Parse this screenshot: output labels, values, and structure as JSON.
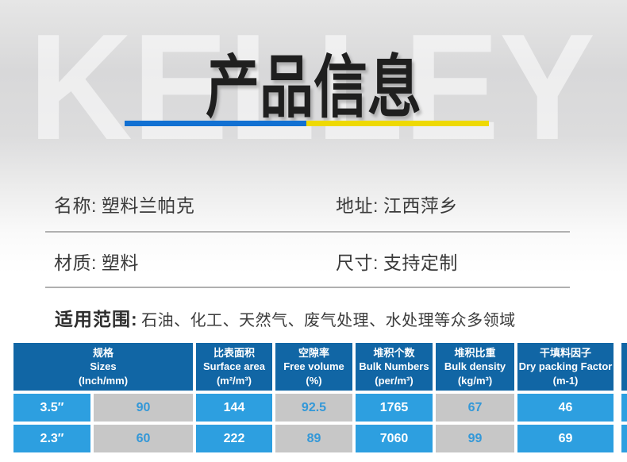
{
  "watermark": "KELLEY",
  "title": "产品信息",
  "palette": {
    "title_color": "#1f1f1f",
    "watermark_color": "rgba(255,255,255,0.55)",
    "bar_blue": "#1170d2",
    "bar_yellow": "#eed903",
    "field_text": "#3a3a3a",
    "divider": "#b0b0b0",
    "header_bg": "#1166a5",
    "cell_blue": "#2d9fe0",
    "cell_gray": "#c7c7c7",
    "num_blue": "#3398d8"
  },
  "fields": {
    "name": {
      "label": "名称:",
      "value": "塑料兰帕克"
    },
    "address": {
      "label": "地址:",
      "value": "江西萍乡"
    },
    "material": {
      "label": "材质:",
      "value": "塑料"
    },
    "size": {
      "label": "尺寸:",
      "value": "支持定制"
    }
  },
  "scope": {
    "label": "适用范围:",
    "value": "石油、化工、天然气、废气处理、水处理等众多领域"
  },
  "table": {
    "headers": [
      {
        "zh": "规格",
        "en": "Sizes",
        "unit": "(Inch/mm)"
      },
      {
        "zh": "比表面积",
        "en": "Surface area",
        "unit": "(m²/m³)"
      },
      {
        "zh": "空隙率",
        "en": "Free volume",
        "unit": "(%)"
      },
      {
        "zh": "堆积个数",
        "en": "Bulk Numbers",
        "unit": "(per/m³)"
      },
      {
        "zh": "堆积比重",
        "en": "Bulk density",
        "unit": "(kg/m³)"
      },
      {
        "zh": "干填料因子",
        "en": "Dry packing Factor",
        "unit": "(m-1)"
      }
    ],
    "rows": [
      [
        "3.5″",
        "90",
        "144",
        "92.5",
        "1765",
        "67",
        "46"
      ],
      [
        "2.3″",
        "60",
        "222",
        "89",
        "7060",
        "99",
        "69"
      ]
    ]
  }
}
